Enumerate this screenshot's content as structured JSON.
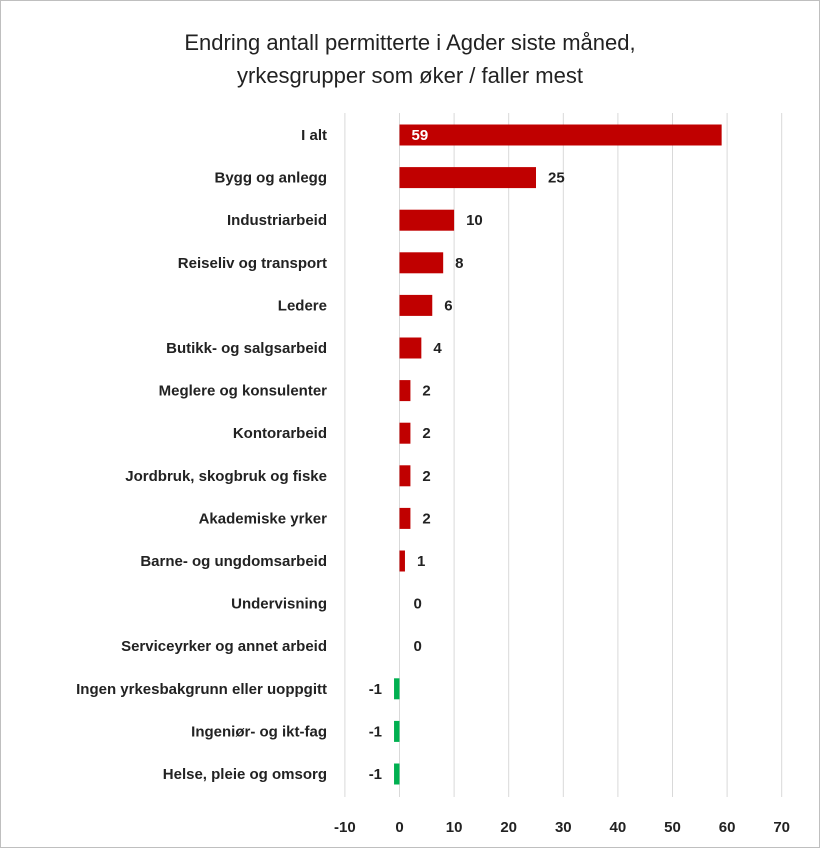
{
  "chart_data": {
    "type": "bar",
    "orientation": "horizontal",
    "title_lines": [
      "Endring antall permitterte i Agder siste måned,",
      "yrkesgrupper som øker / faller mest"
    ],
    "categories": [
      "I alt",
      "Bygg og anlegg",
      "Industriarbeid",
      "Reiseliv og transport",
      "Ledere",
      "Butikk- og salgsarbeid",
      "Meglere og konsulenter",
      "Kontorarbeid",
      "Jordbruk, skogbruk og fiske",
      "Akademiske yrker",
      "Barne- og ungdomsarbeid",
      "Undervisning",
      "Serviceyrker og annet arbeid",
      "Ingen yrkesbakgrunn eller uoppgitt",
      "Ingeniør- og ikt-fag",
      "Helse, pleie og omsorg"
    ],
    "values": [
      59,
      25,
      10,
      8,
      6,
      4,
      2,
      2,
      2,
      2,
      1,
      0,
      0,
      -1,
      -1,
      -1
    ],
    "xlim": [
      -10,
      70
    ],
    "xticks": [
      -10,
      0,
      10,
      20,
      30,
      40,
      50,
      60,
      70
    ],
    "grid": "vertical",
    "legend": "none",
    "colors": {
      "positive": "#c00000",
      "negative": "#00b050",
      "grid": "#d9d9d9",
      "text": "#222222",
      "label_inside": "#ffffff"
    }
  }
}
